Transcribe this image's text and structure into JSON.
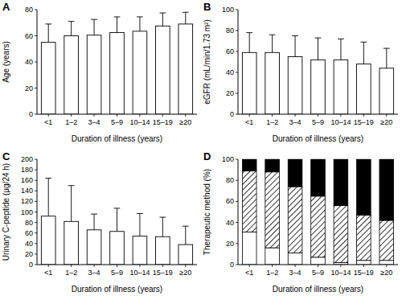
{
  "chart_data": [
    {
      "type": "bar",
      "title": "A",
      "x_label": "Duration of illness (years)",
      "y_label": "Age (years)",
      "categories": [
        "<1",
        "1–2",
        "3–4",
        "5–9",
        "10–14",
        "15–19",
        "≥20"
      ],
      "values": [
        55,
        60,
        60.5,
        62.5,
        63.5,
        67.5,
        69
      ],
      "errors": [
        14,
        11,
        12,
        12,
        11,
        10,
        9
      ],
      "color": "#ffffff",
      "ylim": [
        0,
        80
      ],
      "yticks": [
        0,
        20,
        40,
        60,
        80
      ]
    },
    {
      "type": "bar",
      "title": "B",
      "x_label": "Duration of illness (years)",
      "y_label": "eGFR (mL/min/1.73 m²)",
      "categories": [
        "<1",
        "1–2",
        "3–4",
        "5–9",
        "10–14",
        "15–19",
        "≥20"
      ],
      "values": [
        59,
        59,
        55,
        52,
        52,
        48,
        44
      ],
      "errors": [
        19,
        17,
        20,
        21,
        20,
        21,
        19
      ],
      "color": "#ffffff",
      "ylim": [
        0,
        100
      ],
      "yticks": [
        0,
        20,
        40,
        60,
        80,
        100
      ]
    },
    {
      "type": "bar",
      "title": "C",
      "x_label": "Duration of illness (years)",
      "y_label": "Urinary C-peptide (μg/24 h)",
      "categories": [
        "<1",
        "1–2",
        "3–4",
        "5–9",
        "10–14",
        "15–19",
        "≥20"
      ],
      "values": [
        92,
        82,
        66,
        63,
        54,
        53,
        38
      ],
      "errors": [
        72,
        68,
        30,
        44,
        43,
        37,
        35
      ],
      "color": "#ffffff",
      "ylim": [
        0,
        200
      ],
      "yticks": [
        0,
        20,
        40,
        60,
        80,
        100,
        120,
        140,
        160,
        180,
        200
      ]
    },
    {
      "type": "bar",
      "title": "D",
      "x_label": "Duration of illness (years)",
      "y_label": "Therapeutic method (%)",
      "categories": [
        "<1",
        "1–2",
        "3–4",
        "5–9",
        "10–14",
        "15–19",
        "≥20"
      ],
      "stacked": true,
      "series": [
        {
          "color": "#ffffff",
          "values": [
            31,
            16,
            11,
            7,
            2,
            4,
            4
          ]
        },
        {
          "color": "#000000",
          "line_style": "hatched",
          "values": [
            58,
            72,
            63,
            58,
            54,
            43,
            38
          ]
        },
        {
          "color": "#000000",
          "values": [
            11,
            12,
            26,
            35,
            44,
            53,
            58
          ]
        }
      ],
      "ylim": [
        0,
        100
      ],
      "yticks": [
        0,
        20,
        40,
        60,
        80,
        100
      ]
    }
  ]
}
